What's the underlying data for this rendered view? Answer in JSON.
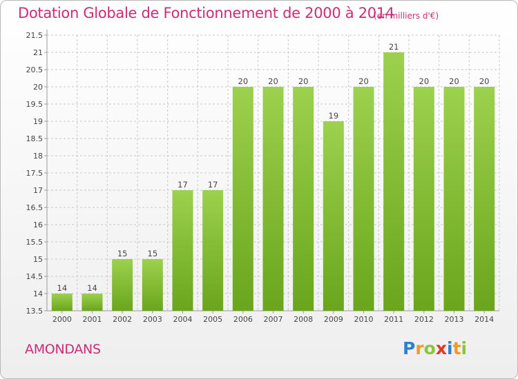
{
  "header": {
    "title": "Dotation Globale de Fonctionnement de 2000 à 2014",
    "unit": "(en milliers d'€)"
  },
  "footer": {
    "commune": "AMONDANS",
    "logo_letters": [
      {
        "ch": "P",
        "color": "#2f7fd0"
      },
      {
        "ch": "r",
        "color": "#f39a1e"
      },
      {
        "ch": "o",
        "color": "#8cc43c"
      },
      {
        "ch": "x",
        "color": "#e8332a"
      },
      {
        "ch": "i",
        "color": "#2f7fd0"
      },
      {
        "ch": "t",
        "color": "#f39a1e"
      },
      {
        "ch": "i",
        "color": "#8cc43c"
      }
    ]
  },
  "colors": {
    "title": "#cc2b77",
    "bar_top": "#9cd14e",
    "bar_bottom": "#6aa51c",
    "grid": "#c8c8c8",
    "axis": "#999999"
  },
  "chart_data": {
    "type": "bar",
    "categories": [
      "2000",
      "2001",
      "2002",
      "2003",
      "2004",
      "2005",
      "2006",
      "2007",
      "2008",
      "2009",
      "2010",
      "2011",
      "2012",
      "2013",
      "2014"
    ],
    "values": [
      14,
      14,
      15,
      15,
      17,
      17,
      20,
      20,
      20,
      19,
      20,
      21,
      20,
      20,
      20
    ],
    "data_labels": [
      "14",
      "14",
      "15",
      "15",
      "17",
      "17",
      "20",
      "20",
      "20",
      "19",
      "20",
      "21",
      "20",
      "20",
      "20"
    ],
    "title": "Dotation Globale de Fonctionnement de 2000 à 2014",
    "ylim": [
      13.5,
      21.5
    ],
    "yticks": [
      13.5,
      14,
      14.5,
      15,
      15.5,
      16,
      16.5,
      17,
      17.5,
      18,
      18.5,
      19,
      19.5,
      20,
      20.5,
      21,
      21.5
    ],
    "ytick_labels": [
      "13.5",
      "14",
      "14.5",
      "15",
      "15.5",
      "16",
      "16.5",
      "17",
      "17.5",
      "18",
      "18.5",
      "19",
      "19.5",
      "20",
      "20.5",
      "21",
      "21.5"
    ],
    "grid": true,
    "legend": false
  }
}
